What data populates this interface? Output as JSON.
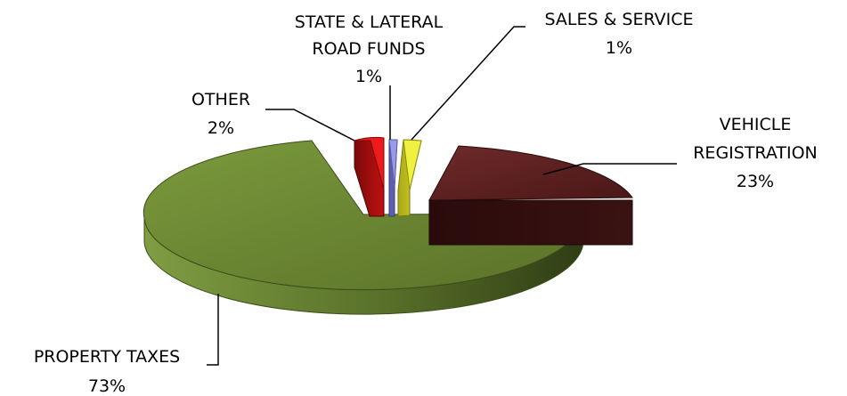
{
  "chart_data": {
    "type": "pie",
    "title": "",
    "slices": [
      {
        "label_lines": [
          "VEHICLE",
          "REGISTRATION"
        ],
        "percent_label": "23%",
        "value": 23,
        "color": "#5e2020"
      },
      {
        "label_lines": [
          "PROPERTY TAXES"
        ],
        "percent_label": "73%",
        "value": 73,
        "color": "#6e8a35"
      },
      {
        "label_lines": [
          "OTHER"
        ],
        "percent_label": "2%",
        "value": 2,
        "color": "#d8171b"
      },
      {
        "label_lines": [
          "STATE & LATERAL",
          "ROAD FUNDS"
        ],
        "percent_label": "1%",
        "value": 1,
        "color": "#8a8ad8"
      },
      {
        "label_lines": [
          "SALES & SERVICE"
        ],
        "percent_label": "1%",
        "value": 1,
        "color": "#e3e31f"
      }
    ],
    "style": "3d-exploded",
    "legend": "none"
  }
}
